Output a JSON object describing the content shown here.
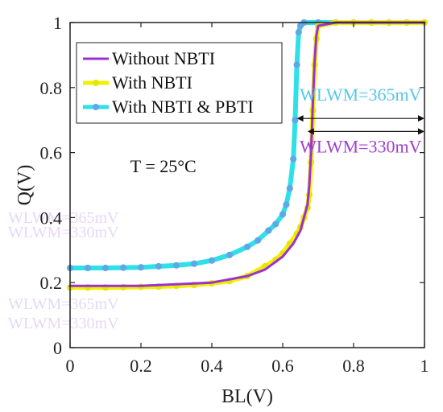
{
  "chart_data": {
    "type": "line",
    "title": "",
    "xlabel": "BL(V)",
    "ylabel": "Q(V)",
    "xlim": [
      0,
      1
    ],
    "ylim": [
      0,
      1
    ],
    "xticks": [
      "0",
      "0.2",
      "0.4",
      "0.6",
      "0.8",
      "1"
    ],
    "yticks": [
      "0",
      "0.2",
      "0.4",
      "0.6",
      "0.8",
      "1"
    ],
    "grid": false,
    "legend_position": "top-left",
    "series": [
      {
        "name": "Without NBTI",
        "color": "#9b30d9",
        "marker": "none",
        "x": [
          0,
          0.2,
          0.4,
          0.5,
          0.55,
          0.6,
          0.63,
          0.65,
          0.66,
          0.67,
          0.675,
          0.68,
          0.685,
          0.69,
          0.695,
          0.7,
          0.75,
          0.8,
          1.0
        ],
        "y": [
          0.19,
          0.19,
          0.2,
          0.22,
          0.24,
          0.28,
          0.32,
          0.36,
          0.4,
          0.44,
          0.5,
          0.6,
          0.75,
          0.88,
          0.96,
          0.99,
          1.0,
          1.0,
          1.0
        ]
      },
      {
        "name": "With NBTI",
        "color": "#f2f200",
        "marker": "circle",
        "x": [
          0,
          0.05,
          0.1,
          0.15,
          0.2,
          0.25,
          0.3,
          0.35,
          0.4,
          0.45,
          0.5,
          0.55,
          0.58,
          0.6,
          0.62,
          0.64,
          0.65,
          0.66,
          0.67,
          0.675,
          0.68,
          0.685,
          0.69,
          0.695,
          0.7,
          0.75,
          0.8,
          0.85,
          0.9,
          0.95,
          1.0
        ],
        "y": [
          0.185,
          0.185,
          0.185,
          0.186,
          0.187,
          0.188,
          0.19,
          0.193,
          0.198,
          0.205,
          0.22,
          0.25,
          0.27,
          0.29,
          0.32,
          0.35,
          0.37,
          0.4,
          0.43,
          0.47,
          0.57,
          0.73,
          0.87,
          0.95,
          0.99,
          1.0,
          1.0,
          1.0,
          1.0,
          1.0,
          1.0
        ]
      },
      {
        "name": "With NBTI & PBTI",
        "color": "#2ee0e8",
        "marker": "circle",
        "x": [
          0,
          0.05,
          0.1,
          0.15,
          0.2,
          0.25,
          0.3,
          0.35,
          0.4,
          0.45,
          0.5,
          0.53,
          0.56,
          0.58,
          0.6,
          0.61,
          0.62,
          0.63,
          0.635,
          0.64,
          0.645,
          0.65,
          0.66,
          0.7,
          0.75,
          0.8,
          0.85,
          0.9,
          0.95,
          1.0
        ],
        "y": [
          0.245,
          0.245,
          0.245,
          0.246,
          0.247,
          0.25,
          0.253,
          0.258,
          0.268,
          0.285,
          0.31,
          0.33,
          0.36,
          0.38,
          0.41,
          0.44,
          0.49,
          0.58,
          0.7,
          0.87,
          0.97,
          0.99,
          1.0,
          1.0,
          1.0,
          1.0,
          1.0,
          1.0,
          1.0,
          1.0
        ]
      }
    ],
    "annotations": [
      {
        "text": "WLWM=365mV",
        "color": "#55c8e8",
        "x": 0.82,
        "y": 0.78,
        "arrow_from": 0.64,
        "arrow_to": 1.0,
        "arrow_y": 0.705
      },
      {
        "text": "WLWM=330mV",
        "color": "#a040d0",
        "x": 0.82,
        "y": 0.62,
        "arrow_from": 0.67,
        "arrow_to": 1.0,
        "arrow_y": 0.665
      },
      {
        "text": "T = 25°C",
        "color": "#111111",
        "x": 0.17,
        "y": 0.56
      }
    ]
  }
}
